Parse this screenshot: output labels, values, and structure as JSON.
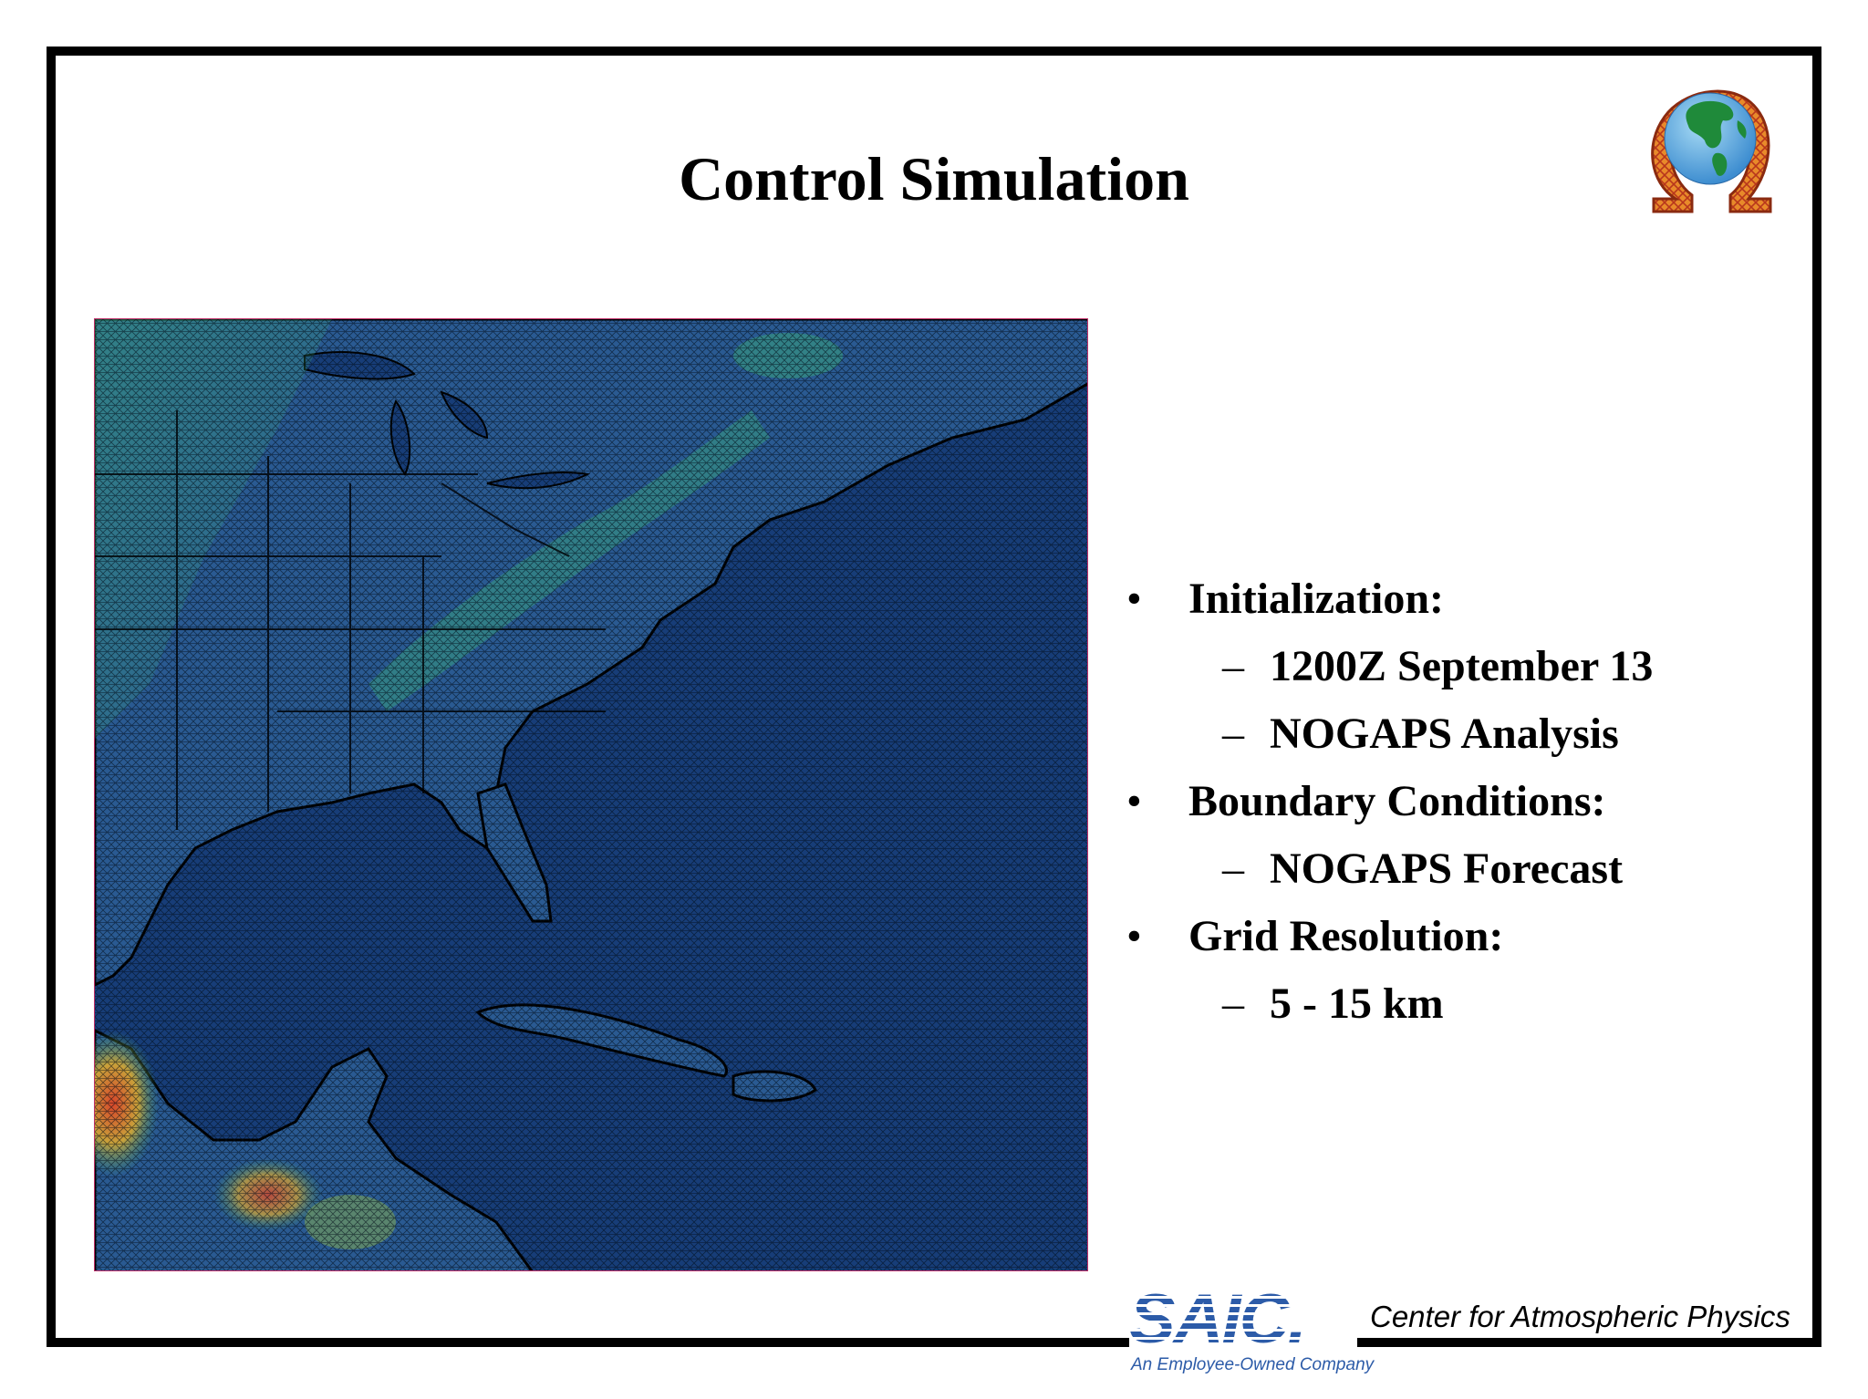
{
  "slide": {
    "title": "Control Simulation"
  },
  "bullets": [
    {
      "marker": "•",
      "text": "Initialization:",
      "level": 1
    },
    {
      "marker": "–",
      "text": "1200Z September 13",
      "level": 2
    },
    {
      "marker": "–",
      "text": "NOGAPS Analysis",
      "level": 2
    },
    {
      "marker": "•",
      "text": "Boundary Conditions:",
      "level": 1
    },
    {
      "marker": "–",
      "text": "NOGAPS Forecast",
      "level": 2
    },
    {
      "marker": "•",
      "text": "Grid Resolution:",
      "level": 1
    },
    {
      "marker": "–",
      "text": "5 - 15 km",
      "level": 2
    }
  ],
  "footer": {
    "company_logo_text": "SAIC.",
    "company_tagline": "An Employee-Owned Company",
    "center_name": "Center for Atmospheric Physics"
  },
  "logo": {
    "icon": "omega-globe-icon"
  },
  "map": {
    "icon": "simulation-grid-map",
    "colors": {
      "ocean": "#173d78",
      "land": "#2a5a92",
      "green": "#3a9a6a",
      "hot": "#c0442a"
    }
  }
}
